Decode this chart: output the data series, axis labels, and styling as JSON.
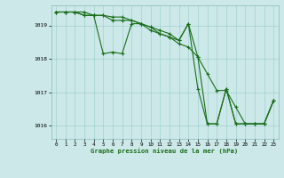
{
  "title": "Graphe pression niveau de la mer (hPa)",
  "bg_color": "#cce8e8",
  "grid_color": "#99cccc",
  "line_color": "#1a6e1a",
  "marker": "+",
  "markersize": 3,
  "linewidth": 0.8,
  "markeredgewidth": 0.8,
  "xlim": [
    -0.5,
    23.5
  ],
  "ylim": [
    1015.6,
    1019.6
  ],
  "yticks": [
    1016,
    1017,
    1018,
    1019
  ],
  "xticks": [
    0,
    1,
    2,
    3,
    4,
    5,
    6,
    7,
    8,
    9,
    10,
    11,
    12,
    13,
    14,
    15,
    16,
    17,
    18,
    19,
    20,
    21,
    22,
    23
  ],
  "series": [
    [
      1019.4,
      1019.4,
      1019.4,
      1019.4,
      1019.3,
      1018.15,
      1018.2,
      1018.15,
      1019.05,
      1019.05,
      1018.85,
      1018.75,
      1018.65,
      1018.55,
      1019.05,
      1017.1,
      1016.05,
      1016.05,
      1017.1,
      1016.05,
      1016.05,
      1016.05,
      1016.05,
      1016.75
    ],
    [
      1019.4,
      1019.4,
      1019.4,
      1019.3,
      1019.3,
      1019.3,
      1019.15,
      1019.15,
      1019.15,
      1019.05,
      1018.95,
      1018.85,
      1018.75,
      1018.55,
      1019.05,
      1018.05,
      1016.05,
      1016.05,
      1017.1,
      1016.05,
      1016.05,
      1016.05,
      1016.05,
      1016.75
    ],
    [
      1019.4,
      1019.4,
      1019.4,
      1019.3,
      1019.3,
      1019.3,
      1019.25,
      1019.25,
      1019.15,
      1019.05,
      1018.95,
      1018.75,
      1018.65,
      1018.45,
      1018.35,
      1018.05,
      1017.55,
      1017.05,
      1017.05,
      1016.55,
      1016.05,
      1016.05,
      1016.05,
      1016.75
    ]
  ]
}
